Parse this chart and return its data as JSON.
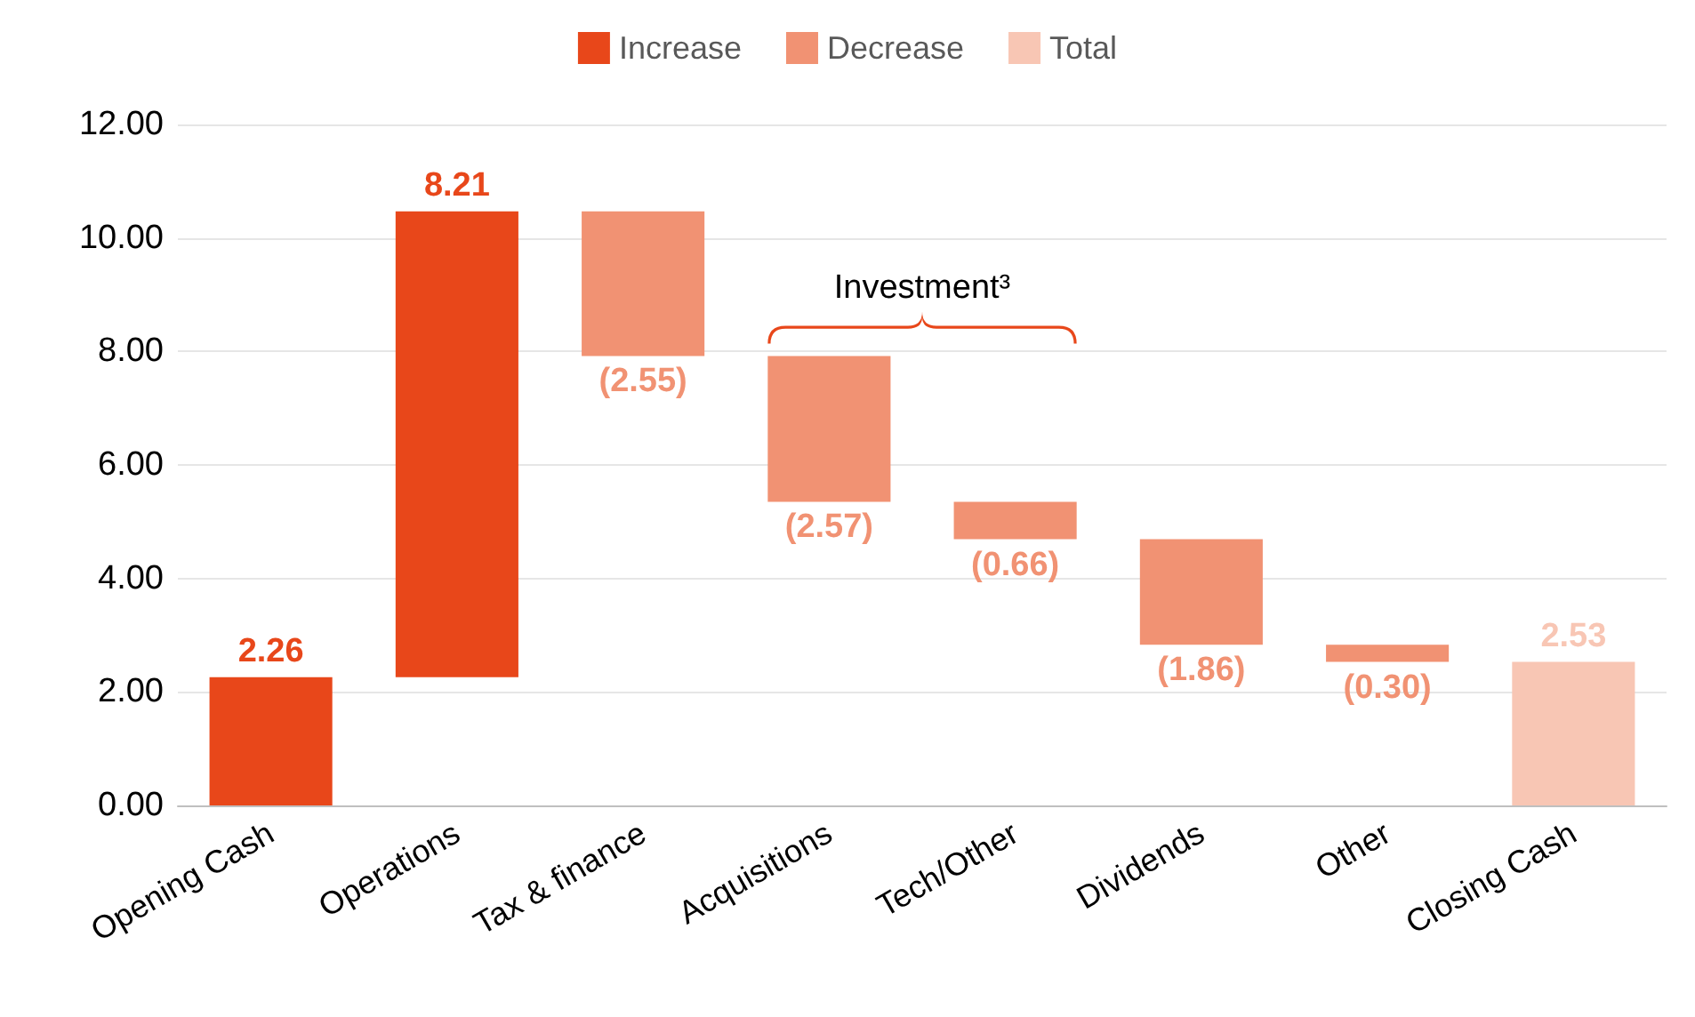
{
  "chart_data": {
    "type": "bar",
    "categories": [
      "Opening Cash",
      "Operations",
      "Tax & finance",
      "Acquisitions",
      "Tech/Other",
      "Dividends",
      "Other",
      "Closing Cash"
    ],
    "series": [
      {
        "name": "Increase",
        "color": "#e8471a",
        "base": [
          0,
          2.26,
          null,
          null,
          null,
          null,
          null,
          null
        ],
        "values": [
          2.26,
          8.21,
          null,
          null,
          null,
          null,
          null,
          null
        ],
        "value_labels": [
          "2.26",
          "8.21",
          null,
          null,
          null,
          null,
          null,
          null
        ]
      },
      {
        "name": "Decrease",
        "color": "#f19273",
        "base": [
          null,
          null,
          10.47,
          7.92,
          5.35,
          4.69,
          2.83,
          null
        ],
        "values": [
          null,
          null,
          -2.55,
          -2.57,
          -0.66,
          -1.86,
          -0.3,
          null
        ],
        "value_labels": [
          null,
          null,
          "(2.55)",
          "(2.57)",
          "(0.66)",
          "(1.86)",
          "(0.30)",
          null
        ]
      },
      {
        "name": "Total",
        "color": "#f8c6b4",
        "base": [
          null,
          null,
          null,
          null,
          null,
          null,
          null,
          0
        ],
        "values": [
          null,
          null,
          null,
          null,
          null,
          null,
          null,
          2.53
        ],
        "value_labels": [
          null,
          null,
          null,
          null,
          null,
          null,
          null,
          "2.53"
        ]
      }
    ],
    "ylim": [
      0,
      12
    ],
    "yticks": [
      {
        "value": 0,
        "label": "0.00"
      },
      {
        "value": 2,
        "label": "2.00"
      },
      {
        "value": 4,
        "label": "4.00"
      },
      {
        "value": 6,
        "label": "6.00"
      },
      {
        "value": 8,
        "label": "8.00"
      },
      {
        "value": 10,
        "label": "10.00"
      },
      {
        "value": 12,
        "label": "12.00"
      }
    ],
    "grid": "y",
    "legend": "top",
    "annotations": [
      "Investment³"
    ]
  }
}
